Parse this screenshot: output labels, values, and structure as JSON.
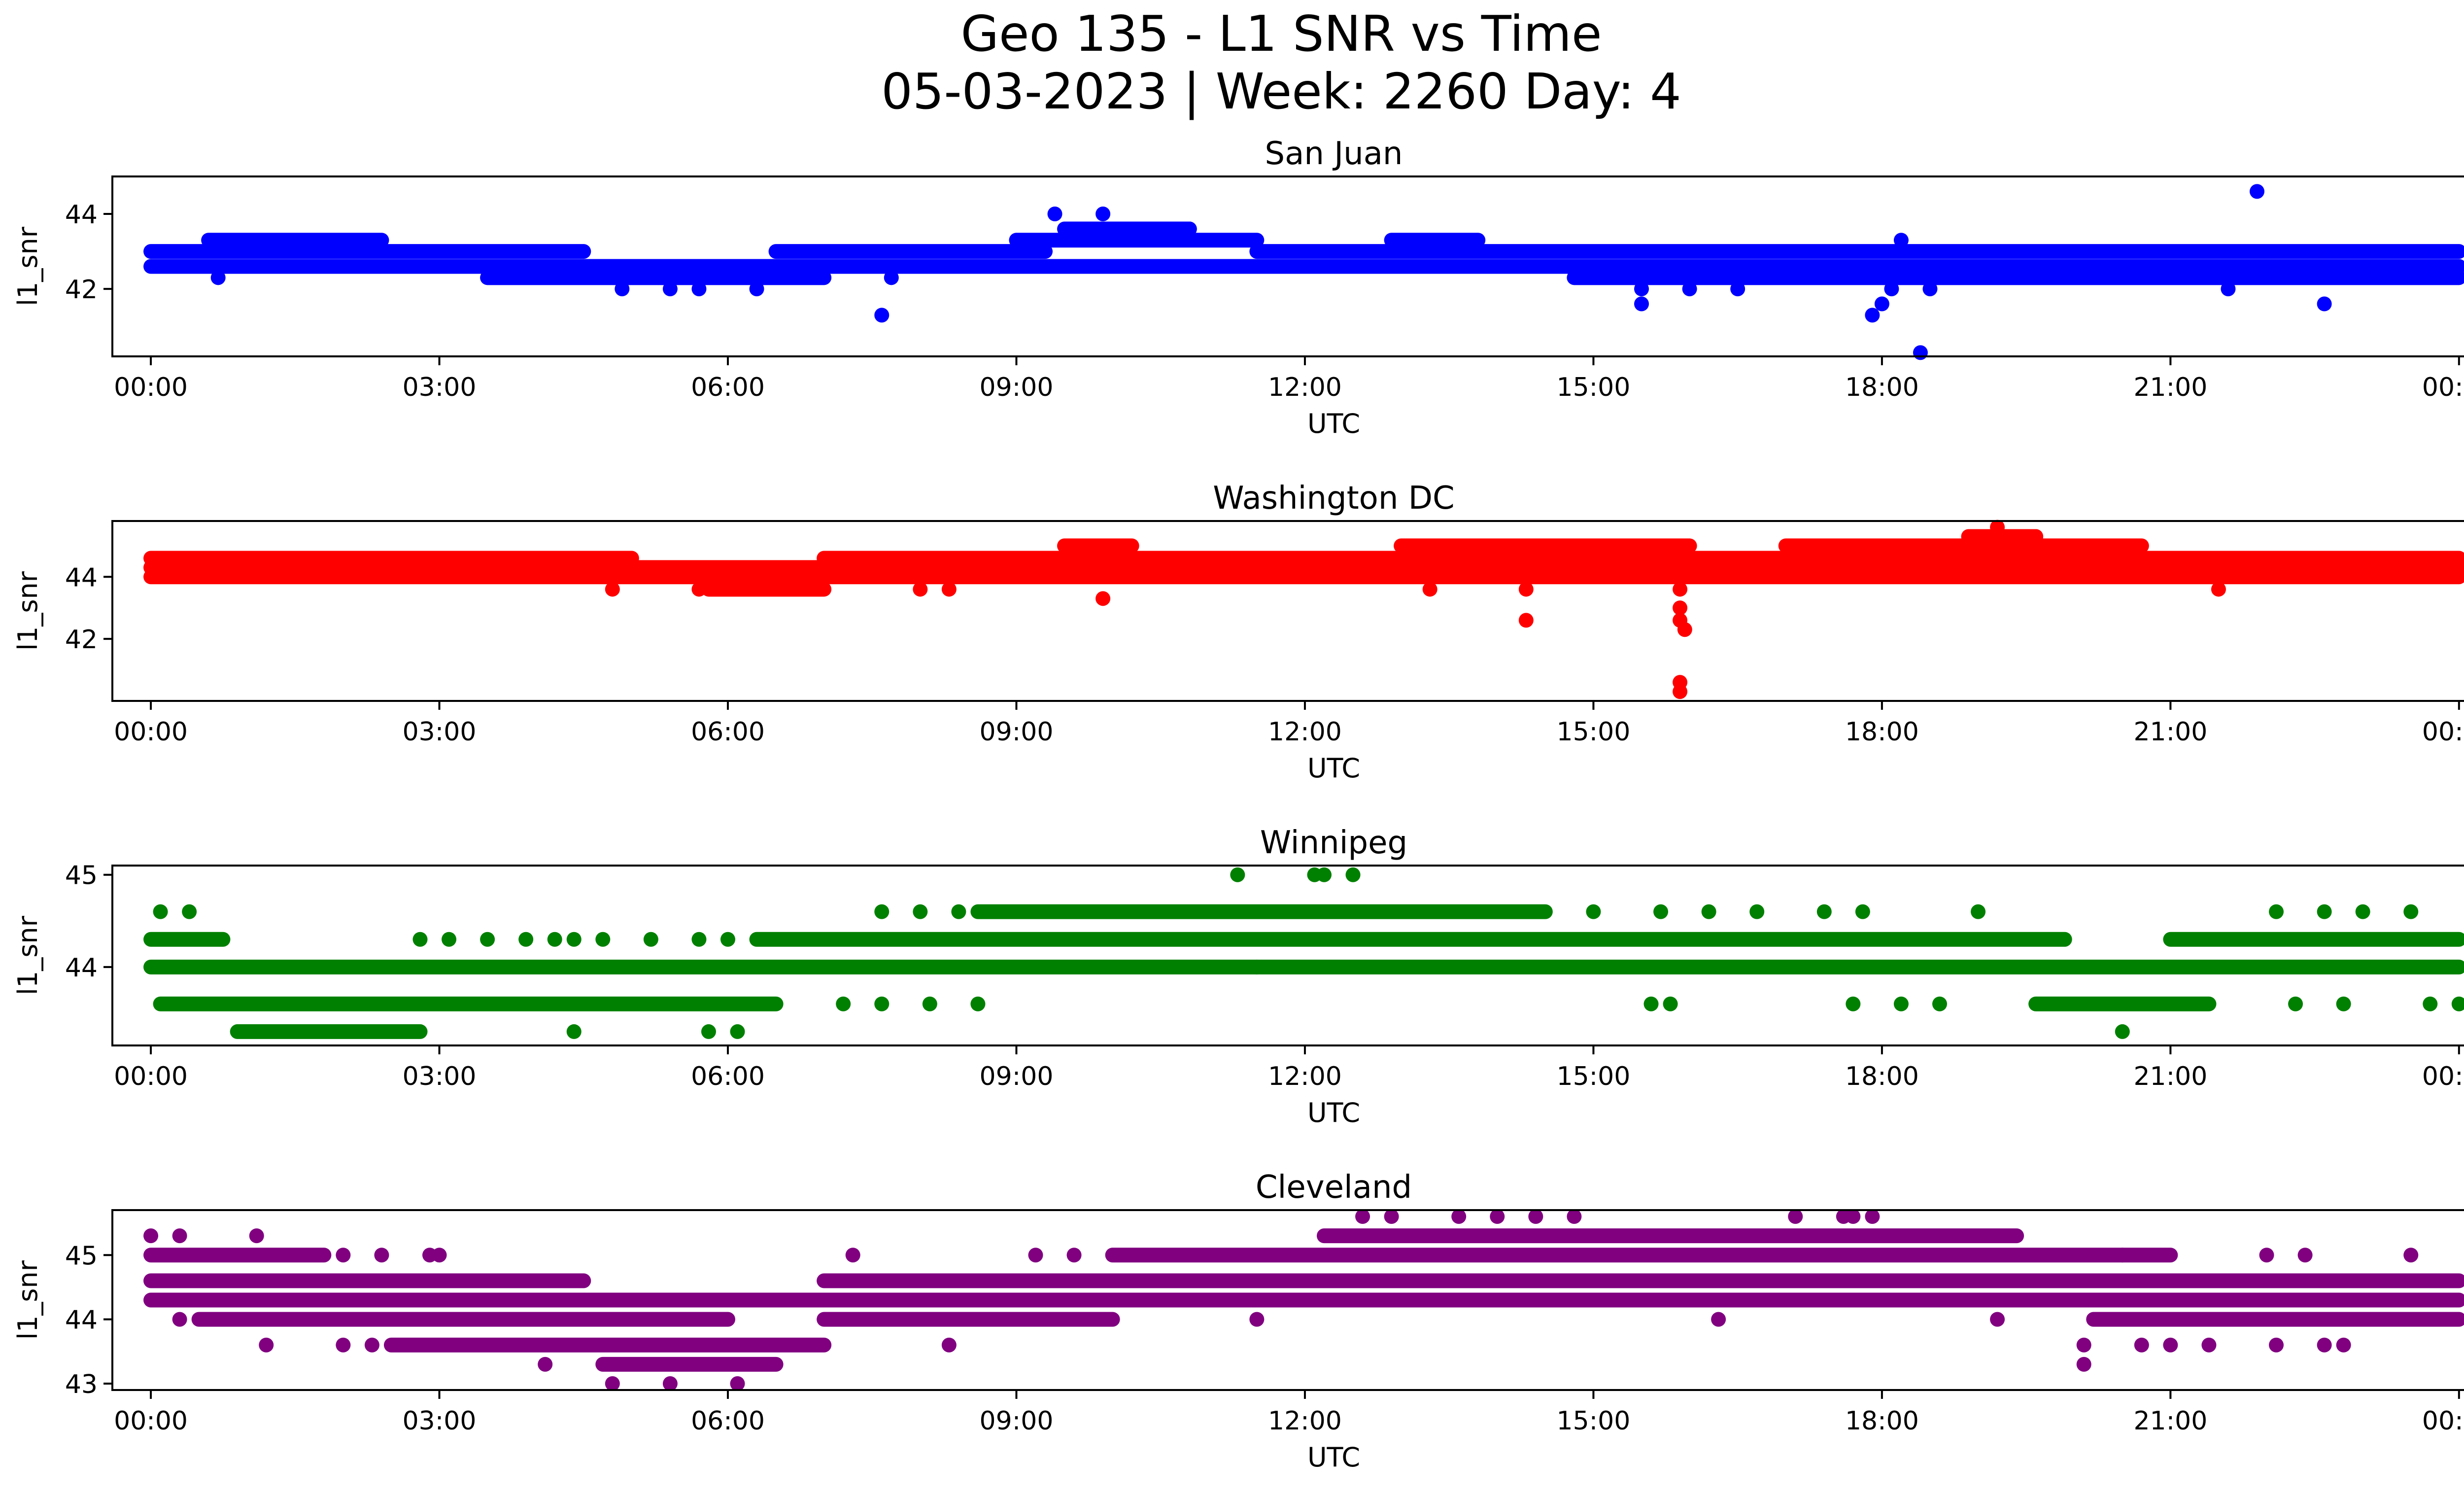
{
  "title_line1": "Geo 135 - L1 SNR vs Time",
  "title_line2": "05-03-2023 | Week: 2260 Day: 4",
  "x_tick_labels": [
    "00:00",
    "03:00",
    "06:00",
    "09:00",
    "12:00",
    "15:00",
    "18:00",
    "21:00",
    "00:00"
  ],
  "chart_data": [
    {
      "type": "scatter",
      "title": "San Juan",
      "xlabel": "UTC",
      "ylabel": "l1_snr",
      "color": "#0000ff",
      "xlim": [
        -0.4,
        25.0
      ],
      "ylim": [
        40.2,
        45.0
      ],
      "yticks": [
        42,
        44
      ],
      "series": [
        {
          "bands": [
            {
              "y": 42.6,
              "x0": 0.0,
              "x1": 24.0
            },
            {
              "y": 43.0,
              "x0": 0.0,
              "x1": 4.5
            },
            {
              "y": 43.0,
              "x0": 6.5,
              "x1": 9.3
            },
            {
              "y": 43.0,
              "x0": 11.5,
              "x1": 24.0
            },
            {
              "y": 43.3,
              "x0": 0.6,
              "x1": 2.4
            },
            {
              "y": 43.3,
              "x0": 9.0,
              "x1": 11.5
            },
            {
              "y": 43.3,
              "x0": 12.9,
              "x1": 13.8
            },
            {
              "y": 43.6,
              "x0": 9.5,
              "x1": 10.8
            },
            {
              "y": 42.3,
              "x0": 3.5,
              "x1": 7.0
            },
            {
              "y": 42.3,
              "x0": 14.8,
              "x1": 24.0
            }
          ],
          "points": [
            {
              "x": 0.7,
              "y": 42.3
            },
            {
              "x": 4.9,
              "y": 42.0
            },
            {
              "x": 5.4,
              "y": 42.0
            },
            {
              "x": 5.7,
              "y": 42.0
            },
            {
              "x": 6.3,
              "y": 42.0
            },
            {
              "x": 7.6,
              "y": 41.3
            },
            {
              "x": 9.4,
              "y": 44.0
            },
            {
              "x": 9.9,
              "y": 44.0
            },
            {
              "x": 15.5,
              "y": 41.6
            },
            {
              "x": 15.5,
              "y": 42.0
            },
            {
              "x": 16.0,
              "y": 42.0
            },
            {
              "x": 16.5,
              "y": 42.0
            },
            {
              "x": 17.9,
              "y": 41.3
            },
            {
              "x": 18.0,
              "y": 41.6
            },
            {
              "x": 18.1,
              "y": 42.0
            },
            {
              "x": 18.4,
              "y": 40.3
            },
            {
              "x": 18.5,
              "y": 42.0
            },
            {
              "x": 18.2,
              "y": 43.3
            },
            {
              "x": 21.9,
              "y": 44.6
            },
            {
              "x": 22.6,
              "y": 41.6
            },
            {
              "x": 21.6,
              "y": 42.0
            },
            {
              "x": 7.7,
              "y": 42.3
            },
            {
              "x": 10.8,
              "y": 43.6
            }
          ]
        }
      ]
    },
    {
      "type": "scatter",
      "title": "Washington DC",
      "xlabel": "UTC",
      "ylabel": "l1_snr",
      "color": "#ff0000",
      "xlim": [
        -0.4,
        25.0
      ],
      "ylim": [
        40.0,
        45.8
      ],
      "yticks": [
        42,
        44
      ],
      "series": [
        {
          "bands": [
            {
              "y": 44.0,
              "x0": 0.0,
              "x1": 24.0
            },
            {
              "y": 44.3,
              "x0": 0.0,
              "x1": 24.0
            },
            {
              "y": 44.6,
              "x0": 0.0,
              "x1": 5.0
            },
            {
              "y": 44.6,
              "x0": 7.0,
              "x1": 24.0
            },
            {
              "y": 45.0,
              "x0": 9.5,
              "x1": 10.2
            },
            {
              "y": 45.0,
              "x0": 13.0,
              "x1": 16.0
            },
            {
              "y": 45.0,
              "x0": 17.0,
              "x1": 20.7
            },
            {
              "y": 45.3,
              "x0": 18.9,
              "x1": 19.6
            },
            {
              "y": 43.6,
              "x0": 5.8,
              "x1": 7.0
            }
          ],
          "points": [
            {
              "x": 4.8,
              "y": 43.6
            },
            {
              "x": 5.7,
              "y": 43.6
            },
            {
              "x": 8.0,
              "y": 43.6
            },
            {
              "x": 8.3,
              "y": 43.6
            },
            {
              "x": 9.9,
              "y": 43.3
            },
            {
              "x": 13.3,
              "y": 43.6
            },
            {
              "x": 14.3,
              "y": 42.6
            },
            {
              "x": 14.3,
              "y": 43.6
            },
            {
              "x": 14.3,
              "y": 44.0
            },
            {
              "x": 15.9,
              "y": 43.6
            },
            {
              "x": 15.9,
              "y": 43.0
            },
            {
              "x": 15.9,
              "y": 42.6
            },
            {
              "x": 15.95,
              "y": 42.3
            },
            {
              "x": 15.9,
              "y": 40.6
            },
            {
              "x": 15.9,
              "y": 40.3
            },
            {
              "x": 19.2,
              "y": 45.6
            },
            {
              "x": 21.5,
              "y": 43.6
            },
            {
              "x": 19.6,
              "y": 45.3
            }
          ]
        }
      ]
    },
    {
      "type": "scatter",
      "title": "Winnipeg",
      "xlabel": "UTC",
      "ylabel": "l1_snr",
      "color": "#008000",
      "xlim": [
        -0.4,
        25.0
      ],
      "ylim": [
        43.15,
        45.1
      ],
      "yticks": [
        44,
        45
      ],
      "series": [
        {
          "bands": [
            {
              "y": 44.0,
              "x0": 0.0,
              "x1": 24.0
            },
            {
              "y": 44.3,
              "x0": 0.0,
              "x1": 0.75
            },
            {
              "y": 44.3,
              "x0": 6.3,
              "x1": 19.9
            },
            {
              "y": 44.3,
              "x0": 21.0,
              "x1": 24.0
            },
            {
              "y": 43.6,
              "x0": 0.1,
              "x1": 6.5
            },
            {
              "y": 43.6,
              "x0": 19.6,
              "x1": 21.4
            },
            {
              "y": 44.6,
              "x0": 8.6,
              "x1": 14.5
            },
            {
              "y": 43.3,
              "x0": 0.9,
              "x1": 2.8
            }
          ],
          "points": [
            {
              "x": 0.1,
              "y": 44.6
            },
            {
              "x": 0.4,
              "y": 44.6
            },
            {
              "x": 2.8,
              "y": 44.3
            },
            {
              "x": 3.1,
              "y": 44.3
            },
            {
              "x": 3.5,
              "y": 44.3
            },
            {
              "x": 3.9,
              "y": 44.3
            },
            {
              "x": 4.2,
              "y": 44.3
            },
            {
              "x": 4.4,
              "y": 44.3
            },
            {
              "x": 4.7,
              "y": 44.3
            },
            {
              "x": 5.2,
              "y": 44.3
            },
            {
              "x": 5.7,
              "y": 44.3
            },
            {
              "x": 6.0,
              "y": 44.3
            },
            {
              "x": 4.4,
              "y": 43.3
            },
            {
              "x": 5.8,
              "y": 43.3
            },
            {
              "x": 6.1,
              "y": 43.3
            },
            {
              "x": 7.2,
              "y": 43.6
            },
            {
              "x": 7.6,
              "y": 43.6
            },
            {
              "x": 8.1,
              "y": 43.6
            },
            {
              "x": 8.6,
              "y": 43.6
            },
            {
              "x": 7.6,
              "y": 44.6
            },
            {
              "x": 8.0,
              "y": 44.6
            },
            {
              "x": 8.4,
              "y": 44.6
            },
            {
              "x": 11.3,
              "y": 45.0
            },
            {
              "x": 12.1,
              "y": 45.0
            },
            {
              "x": 12.2,
              "y": 45.0
            },
            {
              "x": 12.5,
              "y": 45.0
            },
            {
              "x": 11.5,
              "y": 44.0
            },
            {
              "x": 15.0,
              "y": 44.6
            },
            {
              "x": 15.7,
              "y": 44.6
            },
            {
              "x": 16.2,
              "y": 44.6
            },
            {
              "x": 16.7,
              "y": 44.6
            },
            {
              "x": 17.4,
              "y": 44.6
            },
            {
              "x": 17.8,
              "y": 44.6
            },
            {
              "x": 19.0,
              "y": 44.6
            },
            {
              "x": 15.6,
              "y": 43.6
            },
            {
              "x": 15.8,
              "y": 43.6
            },
            {
              "x": 17.7,
              "y": 43.6
            },
            {
              "x": 18.2,
              "y": 43.6
            },
            {
              "x": 18.6,
              "y": 43.6
            },
            {
              "x": 20.5,
              "y": 43.3
            },
            {
              "x": 22.1,
              "y": 44.6
            },
            {
              "x": 22.6,
              "y": 44.6
            },
            {
              "x": 23.0,
              "y": 44.6
            },
            {
              "x": 23.5,
              "y": 44.6
            },
            {
              "x": 22.3,
              "y": 43.6
            },
            {
              "x": 22.8,
              "y": 43.6
            },
            {
              "x": 23.7,
              "y": 43.6
            },
            {
              "x": 24.0,
              "y": 43.6
            }
          ]
        }
      ]
    },
    {
      "type": "scatter",
      "title": "Cleveland",
      "xlabel": "UTC",
      "ylabel": "l1_snr",
      "color": "#800080",
      "xlim": [
        -0.4,
        25.0
      ],
      "ylim": [
        42.9,
        45.7
      ],
      "yticks": [
        43,
        44,
        45
      ],
      "series": [
        {
          "bands": [
            {
              "y": 44.6,
              "x0": 0.0,
              "x1": 4.5
            },
            {
              "y": 44.6,
              "x0": 7.0,
              "x1": 24.0
            },
            {
              "y": 44.3,
              "x0": 0.0,
              "x1": 24.0
            },
            {
              "y": 44.0,
              "x0": 0.5,
              "x1": 6.0
            },
            {
              "y": 44.0,
              "x0": 7.0,
              "x1": 10.0
            },
            {
              "y": 44.0,
              "x0": 20.2,
              "x1": 24.0
            },
            {
              "y": 43.6,
              "x0": 2.5,
              "x1": 7.0
            },
            {
              "y": 43.3,
              "x0": 4.7,
              "x1": 6.5
            },
            {
              "y": 45.0,
              "x0": 0.0,
              "x1": 1.8
            },
            {
              "y": 45.0,
              "x0": 10.0,
              "x1": 21.0
            },
            {
              "y": 45.3,
              "x0": 12.2,
              "x1": 19.4
            }
          ],
          "points": [
            {
              "x": 0.0,
              "y": 45.3
            },
            {
              "x": 0.3,
              "y": 45.3
            },
            {
              "x": 1.1,
              "y": 45.3
            },
            {
              "x": 1.2,
              "y": 43.6
            },
            {
              "x": 0.3,
              "y": 44.0
            },
            {
              "x": 2.0,
              "y": 45.0
            },
            {
              "x": 2.4,
              "y": 45.0
            },
            {
              "x": 2.9,
              "y": 45.0
            },
            {
              "x": 3.0,
              "y": 45.0
            },
            {
              "x": 2.0,
              "y": 43.6
            },
            {
              "x": 2.3,
              "y": 43.6
            },
            {
              "x": 4.1,
              "y": 43.3
            },
            {
              "x": 4.8,
              "y": 43.0
            },
            {
              "x": 5.4,
              "y": 43.0
            },
            {
              "x": 6.1,
              "y": 43.0
            },
            {
              "x": 7.3,
              "y": 45.0
            },
            {
              "x": 8.3,
              "y": 43.6
            },
            {
              "x": 9.2,
              "y": 45.0
            },
            {
              "x": 9.6,
              "y": 45.0
            },
            {
              "x": 11.5,
              "y": 44.0
            },
            {
              "x": 12.6,
              "y": 45.6
            },
            {
              "x": 12.9,
              "y": 45.6
            },
            {
              "x": 13.6,
              "y": 45.6
            },
            {
              "x": 14.0,
              "y": 45.6
            },
            {
              "x": 14.4,
              "y": 45.6
            },
            {
              "x": 14.8,
              "y": 45.6
            },
            {
              "x": 17.1,
              "y": 45.6
            },
            {
              "x": 17.6,
              "y": 45.6
            },
            {
              "x": 17.7,
              "y": 45.6
            },
            {
              "x": 17.9,
              "y": 45.6
            },
            {
              "x": 16.3,
              "y": 44.0
            },
            {
              "x": 19.2,
              "y": 44.0
            },
            {
              "x": 20.1,
              "y": 43.6
            },
            {
              "x": 20.1,
              "y": 43.3
            },
            {
              "x": 20.5,
              "y": 45.0
            },
            {
              "x": 20.7,
              "y": 43.6
            },
            {
              "x": 21.0,
              "y": 43.6
            },
            {
              "x": 21.4,
              "y": 43.6
            },
            {
              "x": 22.1,
              "y": 43.6
            },
            {
              "x": 22.6,
              "y": 43.6
            },
            {
              "x": 22.8,
              "y": 43.6
            },
            {
              "x": 23.5,
              "y": 45.0
            },
            {
              "x": 22.0,
              "y": 45.0
            },
            {
              "x": 22.4,
              "y": 45.0
            }
          ]
        }
      ]
    }
  ]
}
